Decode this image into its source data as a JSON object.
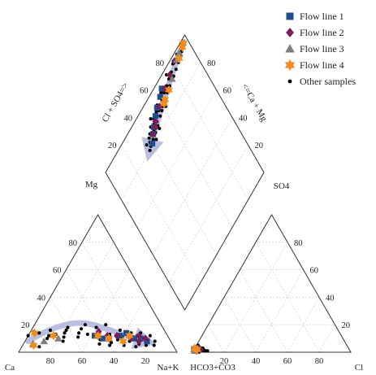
{
  "chart_data": {
    "type": "scatter",
    "subtype": "piper-diagram",
    "axis_labels": {
      "cation_left": "Ca",
      "cation_top": "Mg",
      "cation_right": "Na+K",
      "anion_left": "HCO3+CO3",
      "anion_top": "SO4",
      "anion_right": "Cl",
      "diamond_left": "Cl + SO4=>",
      "diamond_right": "<=Ca + Mg"
    },
    "tick_labels": [
      "20",
      "40",
      "60",
      "80"
    ],
    "legend": {
      "position": "top-right",
      "entries": [
        {
          "name": "Flow line 1",
          "marker": "square",
          "color": "#1f4e8c"
        },
        {
          "name": "Flow line 2",
          "marker": "diamond",
          "color": "#7a1f55"
        },
        {
          "name": "Flow line 3",
          "marker": "triangle",
          "color": "#7f7f7f"
        },
        {
          "name": "Flow line 4",
          "marker": "star",
          "color": "#f28c1c"
        },
        {
          "name": "Other samples",
          "marker": "circle",
          "color": "#000000"
        }
      ]
    },
    "trend_color": "#aeb3dc",
    "series": [
      {
        "name": "Flow line 1",
        "cation": [
          [
            46,
            12
          ],
          [
            42,
            10
          ],
          [
            38,
            10
          ],
          [
            30,
            12
          ],
          [
            25,
            14
          ],
          [
            22,
            10
          ],
          [
            18,
            10
          ],
          [
            15,
            8
          ]
        ],
        "anion": [
          [
            1,
            2
          ],
          [
            1,
            3
          ],
          [
            0,
            2
          ],
          [
            1,
            1
          ]
        ],
        "diamond": [
          [
            95,
            66
          ],
          [
            93,
            62
          ],
          [
            91,
            56
          ],
          [
            89,
            52
          ],
          [
            86,
            47
          ],
          [
            84,
            44
          ],
          [
            81,
            40
          ]
        ]
      },
      {
        "name": "Flow line 2",
        "cation": [
          [
            42,
            15
          ],
          [
            38,
            12
          ],
          [
            32,
            12
          ],
          [
            24,
            10
          ],
          [
            20,
            8
          ],
          [
            18,
            12
          ],
          [
            15,
            10
          ]
        ],
        "anion": [
          [
            4,
            2
          ],
          [
            3,
            2
          ],
          [
            2,
            1
          ]
        ],
        "diamond": [
          [
            97,
            84
          ],
          [
            95,
            76
          ],
          [
            93,
            68
          ],
          [
            90,
            58
          ],
          [
            87,
            50
          ],
          [
            85,
            48
          ],
          [
            84,
            44
          ]
        ]
      },
      {
        "name": "Flow line 3",
        "cation": [
          [
            88,
            6
          ],
          [
            80,
            8
          ],
          [
            70,
            10
          ]
        ],
        "anion": [
          [
            0,
            2
          ],
          [
            1,
            1
          ]
        ],
        "diamond": [
          [
            97,
            90
          ],
          [
            96,
            86
          ],
          [
            92,
            76
          ]
        ]
      },
      {
        "name": "Flow line 4",
        "cation": [
          [
            88,
            5
          ],
          [
            83,
            14
          ],
          [
            72,
            12
          ],
          [
            44,
            12
          ],
          [
            38,
            10
          ],
          [
            30,
            8
          ],
          [
            24,
            12
          ]
        ],
        "anion": [
          [
            0,
            3
          ],
          [
            1,
            2
          ],
          [
            2,
            2
          ]
        ],
        "diamond": [
          [
            98,
            96
          ],
          [
            97,
            94
          ],
          [
            95,
            88
          ],
          [
            90,
            70
          ],
          [
            89,
            64
          ],
          [
            88,
            62
          ]
        ]
      },
      {
        "name": "Other samples",
        "cation": [
          [
            88,
            12
          ],
          [
            85,
            4
          ],
          [
            83,
            15
          ],
          [
            80,
            14
          ],
          [
            77,
            10
          ],
          [
            75,
            12
          ],
          [
            72,
            16
          ],
          [
            70,
            13
          ],
          [
            68,
            8
          ],
          [
            66,
            11
          ],
          [
            64,
            14
          ],
          [
            62,
            16
          ],
          [
            60,
            18
          ],
          [
            57,
            11
          ],
          [
            55,
            14
          ],
          [
            52,
            17
          ],
          [
            50,
            13
          ],
          [
            48,
            20
          ],
          [
            46,
            6
          ],
          [
            44,
            9
          ],
          [
            42,
            18
          ],
          [
            40,
            5
          ],
          [
            38,
            7
          ],
          [
            36,
            13
          ],
          [
            35,
            20
          ],
          [
            33,
            9
          ],
          [
            31,
            5
          ],
          [
            29,
            11
          ],
          [
            28,
            16
          ],
          [
            26,
            8
          ],
          [
            24,
            4
          ],
          [
            22,
            14
          ],
          [
            21,
            6
          ],
          [
            19,
            12
          ],
          [
            17,
            5
          ],
          [
            16,
            14
          ],
          [
            14,
            9
          ],
          [
            12,
            5
          ],
          [
            11,
            12
          ],
          [
            10,
            8
          ]
        ],
        "anion": [
          [
            5,
            1
          ],
          [
            4,
            0
          ],
          [
            3,
            3
          ],
          [
            2,
            4
          ],
          [
            1,
            5
          ],
          [
            6,
            2
          ],
          [
            7,
            1
          ],
          [
            2,
            0
          ],
          [
            3,
            1
          ],
          [
            5,
            3
          ],
          [
            8,
            1
          ],
          [
            9,
            1
          ],
          [
            1,
            3
          ],
          [
            0,
            4
          ],
          [
            4,
            3
          ]
        ],
        "diamond": [
          [
            97,
            96
          ],
          [
            96,
            92
          ],
          [
            99,
            95
          ],
          [
            95,
            90
          ],
          [
            96,
            86
          ],
          [
            94,
            86
          ],
          [
            97,
            82
          ],
          [
            93,
            82
          ],
          [
            95,
            78
          ],
          [
            92,
            78
          ],
          [
            94,
            74
          ],
          [
            91,
            72
          ],
          [
            93,
            70
          ],
          [
            90,
            68
          ],
          [
            92,
            66
          ],
          [
            89,
            64
          ],
          [
            94,
            64
          ],
          [
            91,
            62
          ],
          [
            88,
            60
          ],
          [
            90,
            58
          ],
          [
            87,
            58
          ],
          [
            92,
            57
          ],
          [
            89,
            56
          ],
          [
            86,
            55
          ],
          [
            90,
            54
          ],
          [
            88,
            52
          ],
          [
            86,
            51
          ],
          [
            84,
            50
          ],
          [
            89,
            50
          ],
          [
            87,
            48
          ],
          [
            85,
            46
          ],
          [
            83,
            46
          ],
          [
            88,
            45
          ],
          [
            84,
            43
          ],
          [
            86,
            42
          ],
          [
            82,
            42
          ],
          [
            85,
            40
          ],
          [
            83,
            39
          ],
          [
            81,
            38
          ],
          [
            84,
            36
          ],
          [
            80,
            36
          ],
          [
            97,
            74
          ],
          [
            98,
            88
          ],
          [
            86,
            62
          ],
          [
            82,
            50
          ],
          [
            91,
            48
          ],
          [
            80,
            44
          ]
        ]
      }
    ],
    "trend_arrows": {
      "cation": [
        [
          90,
          8
        ],
        [
          78,
          14
        ],
        [
          62,
          20
        ],
        [
          48,
          22
        ],
        [
          36,
          17
        ],
        [
          26,
          12
        ],
        [
          16,
          8
        ]
      ],
      "diamond": [
        [
          98,
          97
        ],
        [
          96,
          86
        ],
        [
          92,
          72
        ],
        [
          88,
          58
        ],
        [
          84,
          46
        ],
        [
          80,
          36
        ]
      ]
    }
  }
}
